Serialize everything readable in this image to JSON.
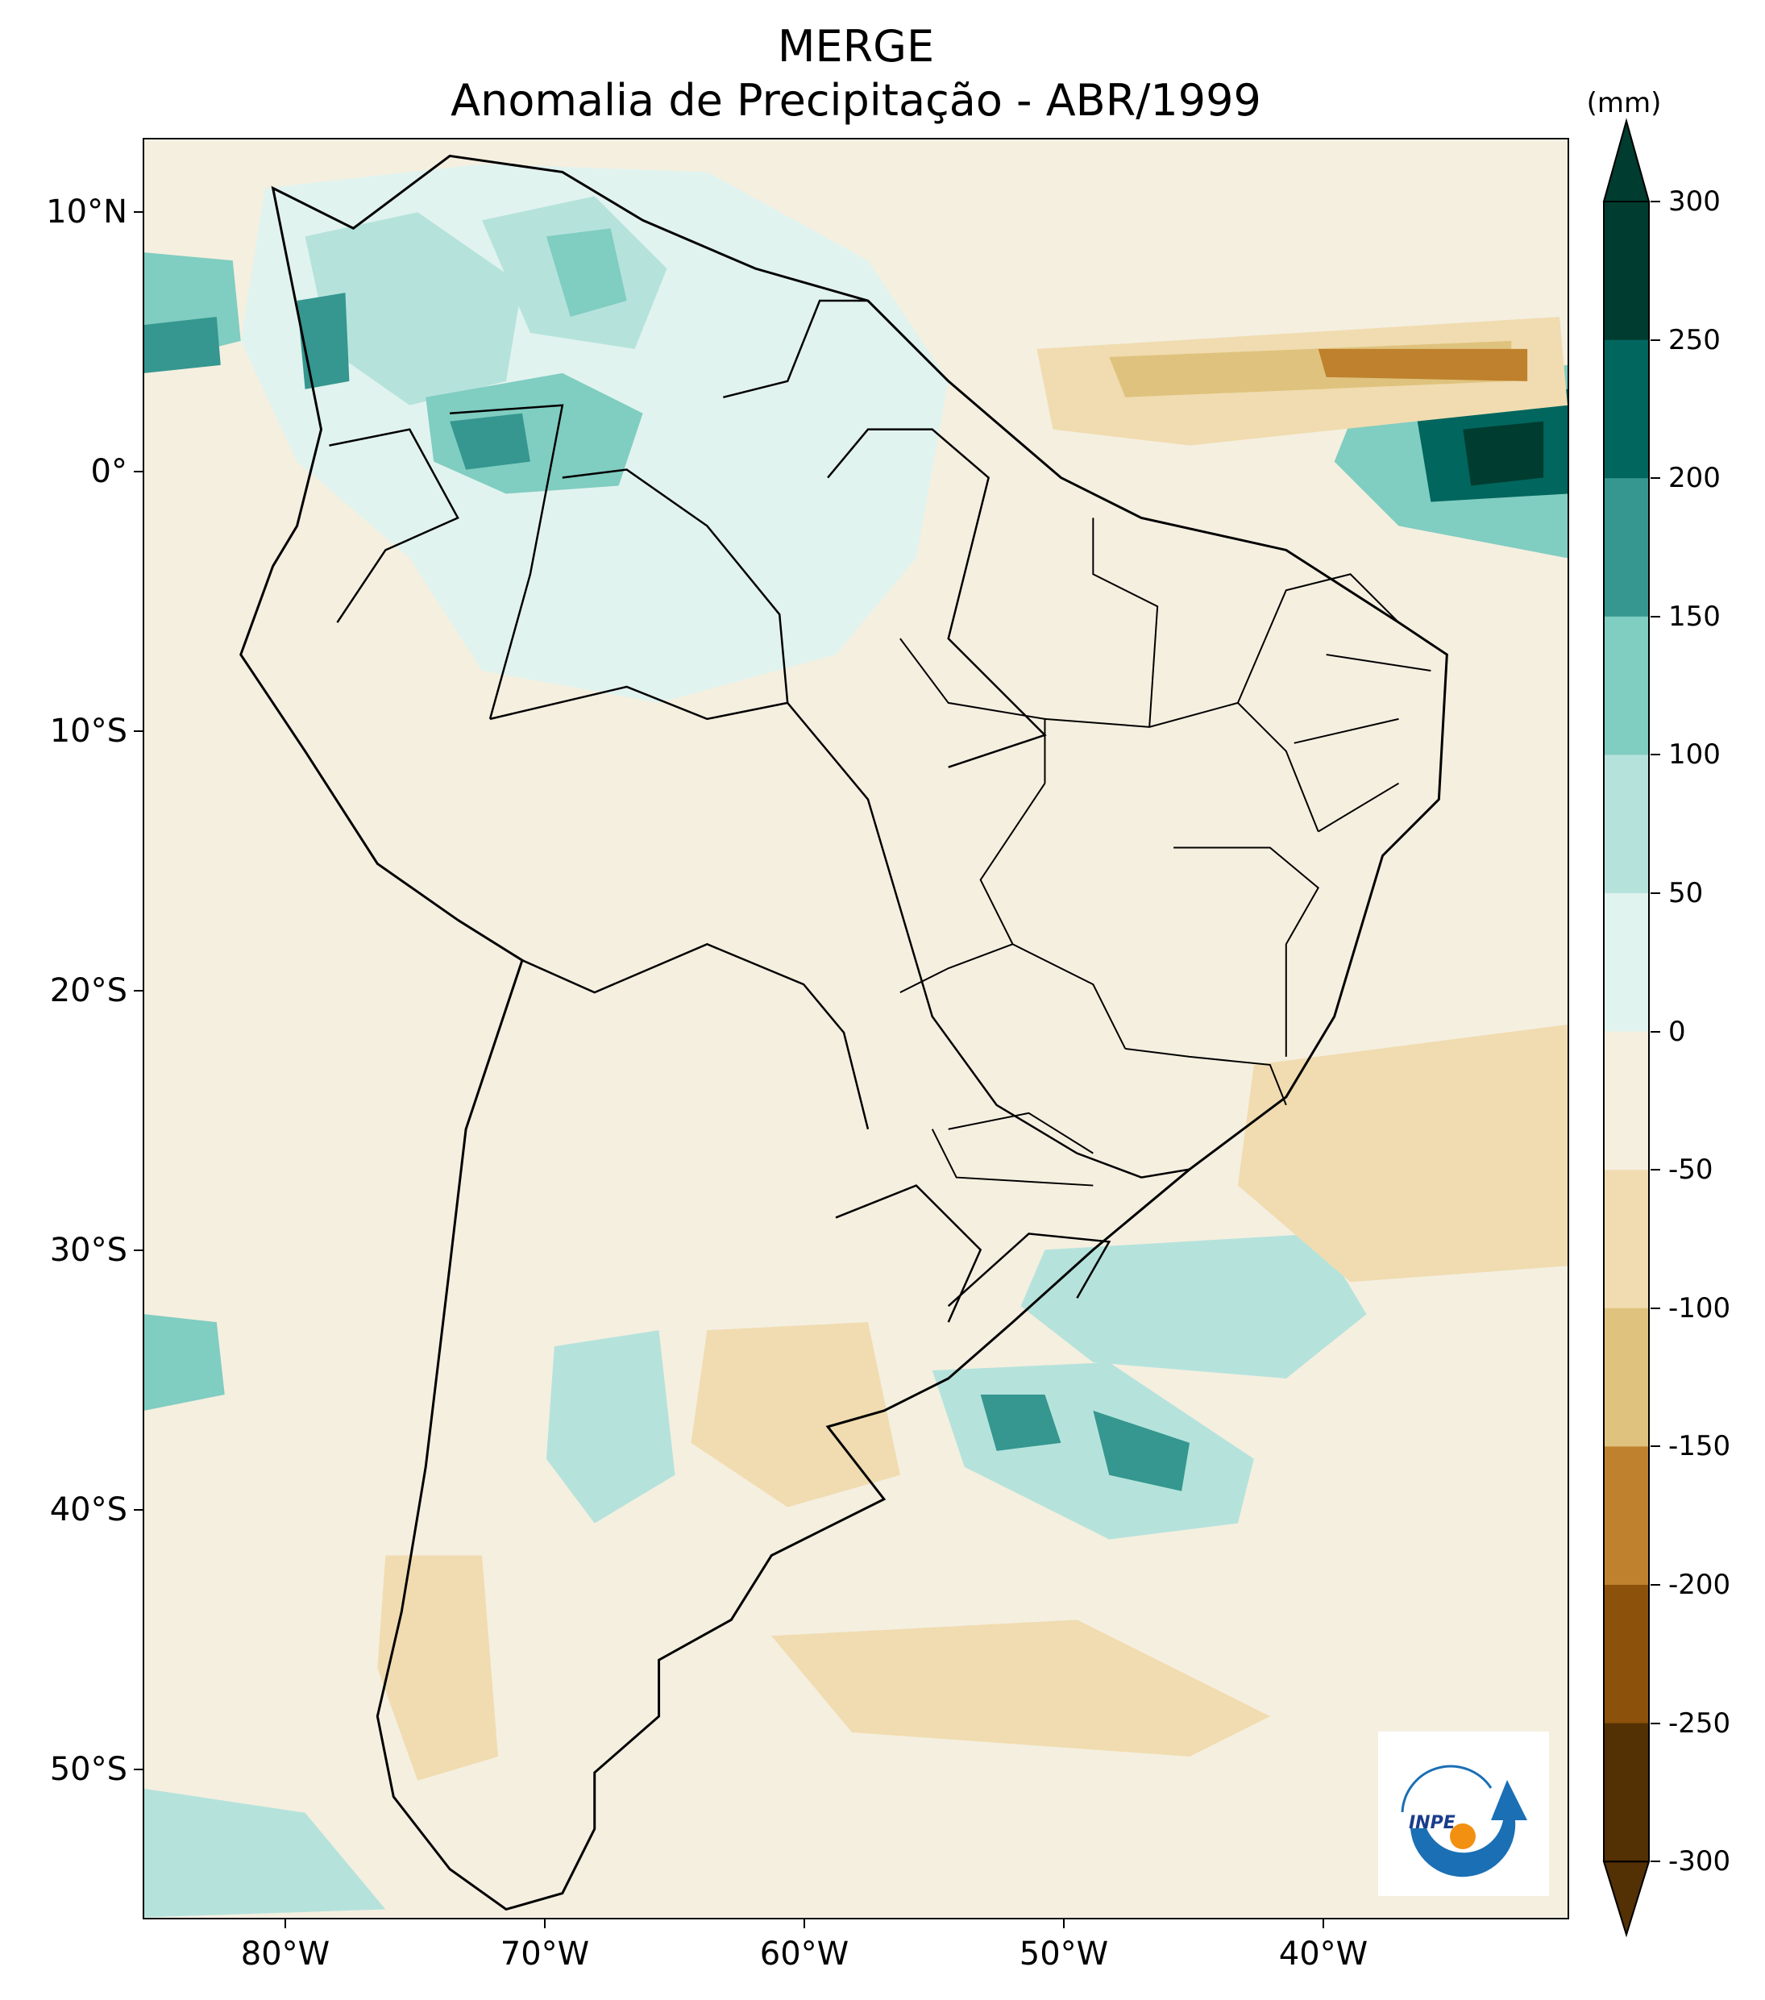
{
  "title": "MERGE",
  "subtitle": "Anomalia de Precipitação - ABR/1999",
  "colorbar": {
    "unit": "(mm)",
    "ticks": [
      "300",
      "250",
      "200",
      "150",
      "100",
      "50",
      "0",
      "-50",
      "-100",
      "-150",
      "-200",
      "-250",
      "-300"
    ],
    "colors": [
      "#003c30",
      "#01665e",
      "#35978f",
      "#80cdc1",
      "#b5e3dc",
      "#e1f3ef",
      "#f5efe0",
      "#f0dcb0",
      "#dfc27d",
      "#bf812d",
      "#8c510a",
      "#543005"
    ]
  },
  "axes": {
    "lat_labels": [
      "10°N",
      "0°",
      "10°S",
      "20°S",
      "30°S",
      "40°S",
      "50°S"
    ],
    "lon_labels": [
      "80°W",
      "70°W",
      "60°W",
      "50°W",
      "40°W"
    ]
  },
  "logo": {
    "text": "INPE"
  }
}
